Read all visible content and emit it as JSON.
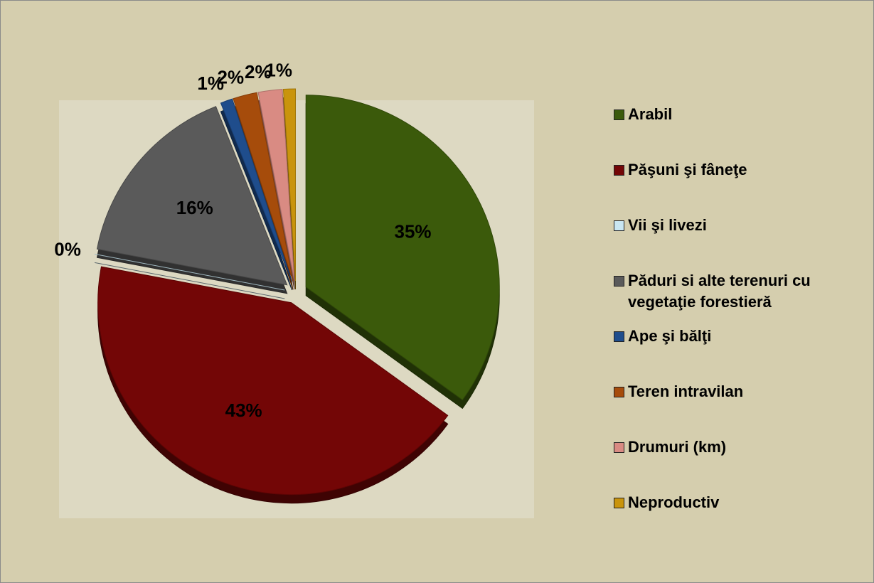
{
  "chart_data": {
    "type": "pie",
    "categories": [
      "Arabil",
      "Păşuni şi fâneţe",
      "Vii şi livezi",
      "Păduri si alte terenuri cu vegetaţie forestieră",
      "Ape şi bălţi",
      "Teren intravilan",
      "Drumuri (km)",
      "Neproductiv"
    ],
    "values": [
      35,
      43,
      0,
      16,
      1,
      2,
      2,
      1
    ],
    "value_labels": [
      "35%",
      "43%",
      "0%",
      "16%",
      "1%",
      "2%",
      "2%",
      "1%"
    ],
    "colors": [
      "#3b5a0b",
      "#730606",
      "#c9e6f1",
      "#5a5a5a",
      "#1f4d8c",
      "#a64c0b",
      "#d98b83",
      "#c9940c"
    ],
    "legend": "right"
  }
}
